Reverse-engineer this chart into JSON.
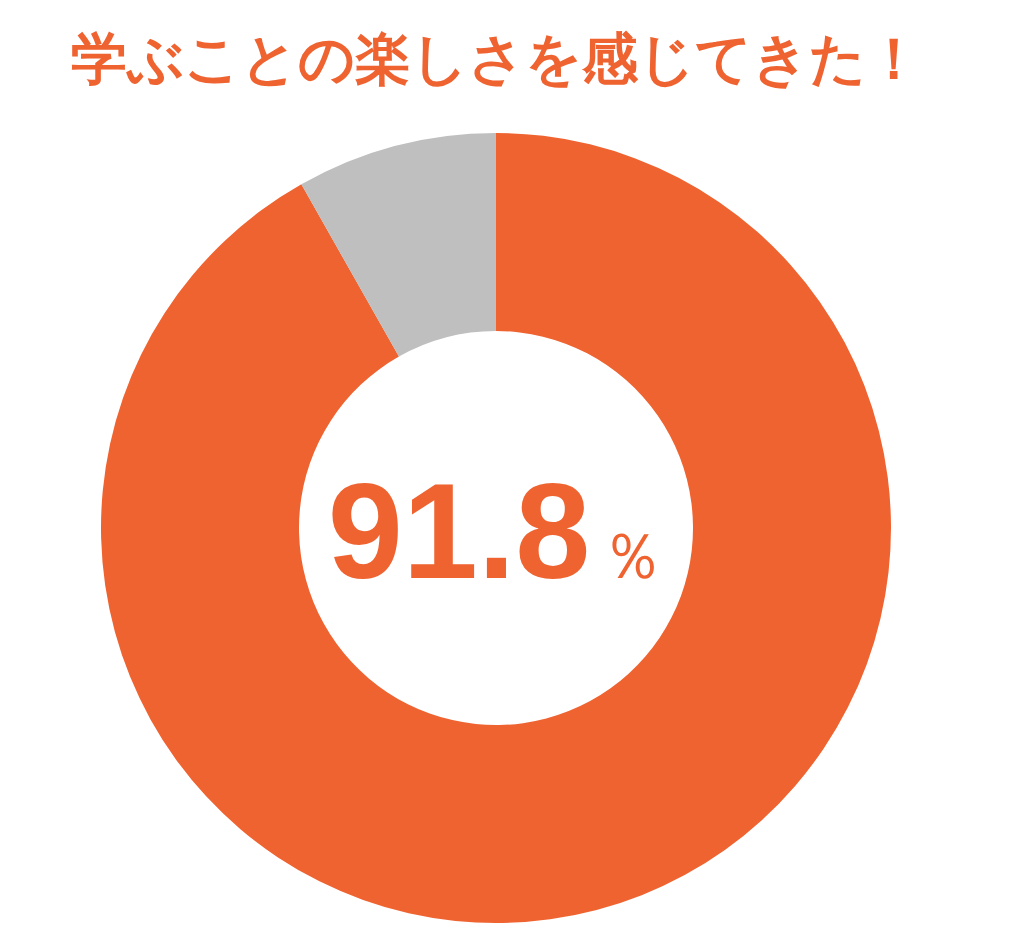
{
  "chart_data": {
    "type": "donut",
    "title": "学ぶことの楽しさを感じてきた！",
    "categories": [
      null,
      null
    ],
    "values": [
      91.8,
      8.2
    ],
    "colors": [
      "#ef6331",
      "#bfbfbf"
    ],
    "annotations": [
      "91.8％"
    ]
  }
}
